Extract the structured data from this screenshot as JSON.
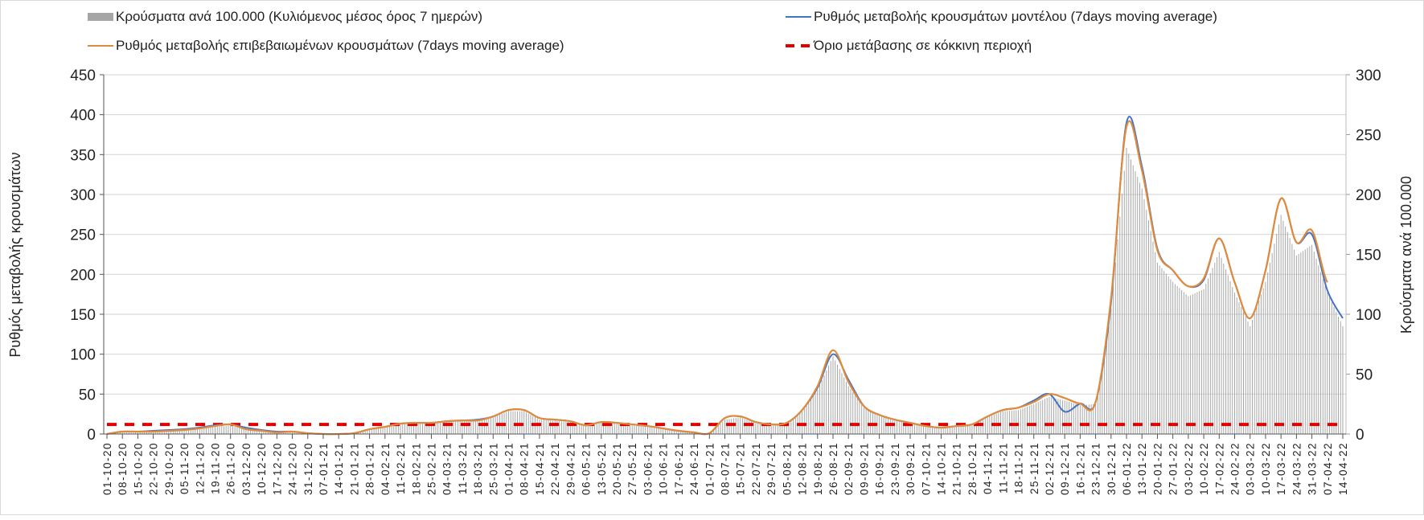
{
  "chart_data": {
    "type": "bar+line",
    "legend": {
      "bars": "Κρούσματα ανά 100.000 (Κυλιόμενος μέσος όρος 7 ημερών)",
      "model": "Ρυθμός μεταβολής κρουσμάτων μοντέλου (7days moving average)",
      "confirmed": "Ρυθμός μεταβολής επιβεβαιωμένων κρουσμάτων (7days moving average)",
      "threshold": "Όριο μετάβασης σε κόκκινη περιοχή"
    },
    "ylabel_left": "Ρυθμός μεταβολής κρουσμάτων",
    "ylabel_right": "Κρούσματα ανά 100.000",
    "ylim_left": [
      0,
      450
    ],
    "ylim_right": [
      0,
      300
    ],
    "yticks_left": [
      "0",
      "50",
      "100",
      "150",
      "200",
      "250",
      "300",
      "350",
      "400",
      "450"
    ],
    "yticks_right": [
      "0",
      "50",
      "100",
      "150",
      "200",
      "250",
      "300"
    ],
    "grid": true,
    "legend_placement": "top",
    "threshold_value": 12,
    "colors": {
      "bars": "#a6a6a6",
      "model": "#4472c4",
      "confirmed": "#e08a3c",
      "threshold": "#e00000"
    },
    "x": [
      "01-10-20",
      "08-10-20",
      "15-10-20",
      "22-10-20",
      "29-10-20",
      "05-11-20",
      "12-11-20",
      "19-11-20",
      "26-11-20",
      "03-12-20",
      "10-12-20",
      "17-12-20",
      "24-12-20",
      "31-12-20",
      "07-01-21",
      "14-01-21",
      "21-01-21",
      "28-01-21",
      "04-02-21",
      "11-02-21",
      "18-02-21",
      "25-02-21",
      "04-03-21",
      "11-03-21",
      "18-03-21",
      "25-03-21",
      "01-04-21",
      "08-04-21",
      "15-04-21",
      "22-04-21",
      "29-04-21",
      "06-05-21",
      "13-05-21",
      "20-05-21",
      "27-05-21",
      "03-06-21",
      "10-06-21",
      "17-06-21",
      "24-06-21",
      "01-07-21",
      "08-07-21",
      "15-07-21",
      "22-07-21",
      "29-07-21",
      "05-08-21",
      "12-08-21",
      "19-08-21",
      "26-08-21",
      "02-09-21",
      "09-09-21",
      "16-09-21",
      "23-09-21",
      "30-09-21",
      "07-10-21",
      "14-10-21",
      "21-10-21",
      "28-10-21",
      "04-11-21",
      "11-11-21",
      "18-11-21",
      "25-11-21",
      "02-12-21",
      "09-12-21",
      "16-12-21",
      "23-12-21",
      "30-12-21",
      "06-01-22",
      "13-01-22",
      "20-01-22",
      "27-01-22",
      "03-02-22",
      "10-02-22",
      "17-02-22",
      "24-02-22",
      "03-03-22",
      "10-03-22",
      "17-03-22",
      "24-03-22",
      "31-03-22",
      "07-04-22",
      "14-04-22"
    ],
    "series": [
      {
        "name": "confirmed",
        "axis": "left",
        "values": [
          0,
          3,
          3,
          3,
          4,
          5,
          7,
          10,
          12,
          6,
          4,
          2,
          3,
          1,
          0,
          0,
          1,
          6,
          9,
          13,
          14,
          14,
          16,
          17,
          17,
          22,
          30,
          30,
          20,
          18,
          16,
          11,
          15,
          14,
          12,
          10,
          7,
          4,
          2,
          1,
          20,
          22,
          15,
          12,
          14,
          30,
          60,
          105,
          65,
          35,
          24,
          18,
          14,
          10,
          8,
          10,
          12,
          22,
          30,
          33,
          40,
          50,
          45,
          38,
          40,
          170,
          385,
          330,
          230,
          205,
          185,
          195,
          245,
          190,
          145,
          205,
          295,
          240,
          255,
          190,
          null
        ]
      },
      {
        "name": "model",
        "axis": "left",
        "values": [
          0,
          3,
          3,
          4,
          5,
          6,
          8,
          11,
          12,
          8,
          5,
          3,
          3,
          1,
          0,
          0,
          1,
          6,
          9,
          13,
          14,
          14,
          16,
          17,
          18,
          22,
          30,
          30,
          20,
          18,
          16,
          11,
          15,
          14,
          12,
          10,
          7,
          4,
          2,
          1,
          20,
          22,
          15,
          12,
          14,
          30,
          58,
          100,
          68,
          35,
          24,
          18,
          14,
          10,
          8,
          10,
          12,
          22,
          30,
          33,
          42,
          50,
          28,
          38,
          40,
          165,
          390,
          335,
          232,
          205,
          185,
          193,
          245,
          190,
          145,
          205,
          295,
          240,
          250,
          180,
          145
        ]
      },
      {
        "name": "bars",
        "axis": "right",
        "values": [
          0,
          2,
          2,
          2,
          2,
          3,
          4,
          6,
          7,
          4,
          2,
          1,
          2,
          1,
          0,
          0,
          1,
          4,
          6,
          8,
          9,
          9,
          10,
          11,
          11,
          14,
          19,
          19,
          12,
          11,
          10,
          7,
          9,
          9,
          7,
          6,
          4,
          2,
          1,
          1,
          12,
          14,
          9,
          7,
          9,
          19,
          37,
          65,
          40,
          22,
          15,
          11,
          9,
          6,
          5,
          6,
          7,
          14,
          19,
          20,
          25,
          31,
          28,
          24,
          25,
          105,
          239,
          205,
          143,
          127,
          115,
          121,
          152,
          118,
          90,
          127,
          183,
          149,
          158,
          118,
          90
        ]
      }
    ]
  }
}
